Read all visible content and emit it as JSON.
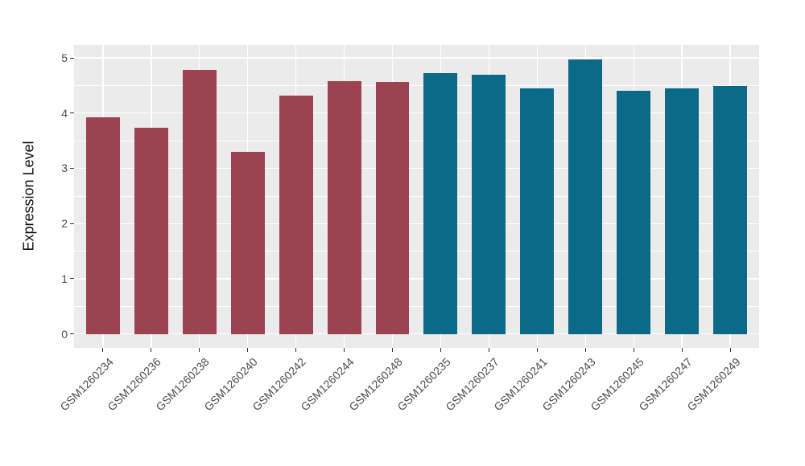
{
  "chart_data": {
    "type": "bar",
    "title": "",
    "xlabel": "",
    "ylabel": "Expression Level",
    "ylim": [
      0,
      5
    ],
    "yticks": [
      0,
      1,
      2,
      3,
      4,
      5
    ],
    "minor_gridlines": true,
    "grid": "on",
    "legend_position": "none",
    "panel_background": "#EBEBEB",
    "gridline_color": "#FFFFFF",
    "colors": {
      "maroon": "#9C4351",
      "teal": "#0C6A89"
    },
    "categories": [
      "GSM1260234",
      "GSM1260236",
      "GSM1260238",
      "GSM1260240",
      "GSM1260242",
      "GSM1260244",
      "GSM1260248",
      "GSM1260235",
      "GSM1260237",
      "GSM1260241",
      "GSM1260243",
      "GSM1260245",
      "GSM1260247",
      "GSM1260249"
    ],
    "bars": [
      {
        "label": "GSM1260234",
        "value": 3.92,
        "group": "maroon"
      },
      {
        "label": "GSM1260236",
        "value": 3.74,
        "group": "maroon"
      },
      {
        "label": "GSM1260238",
        "value": 4.78,
        "group": "maroon"
      },
      {
        "label": "GSM1260240",
        "value": 3.3,
        "group": "maroon"
      },
      {
        "label": "GSM1260242",
        "value": 4.31,
        "group": "maroon"
      },
      {
        "label": "GSM1260244",
        "value": 4.58,
        "group": "maroon"
      },
      {
        "label": "GSM1260248",
        "value": 4.56,
        "group": "maroon"
      },
      {
        "label": "GSM1260235",
        "value": 4.73,
        "group": "teal"
      },
      {
        "label": "GSM1260237",
        "value": 4.69,
        "group": "teal"
      },
      {
        "label": "GSM1260241",
        "value": 4.44,
        "group": "teal"
      },
      {
        "label": "GSM1260243",
        "value": 4.97,
        "group": "teal"
      },
      {
        "label": "GSM1260245",
        "value": 4.4,
        "group": "teal"
      },
      {
        "label": "GSM1260247",
        "value": 4.44,
        "group": "teal"
      },
      {
        "label": "GSM1260249",
        "value": 4.49,
        "group": "teal"
      }
    ]
  }
}
